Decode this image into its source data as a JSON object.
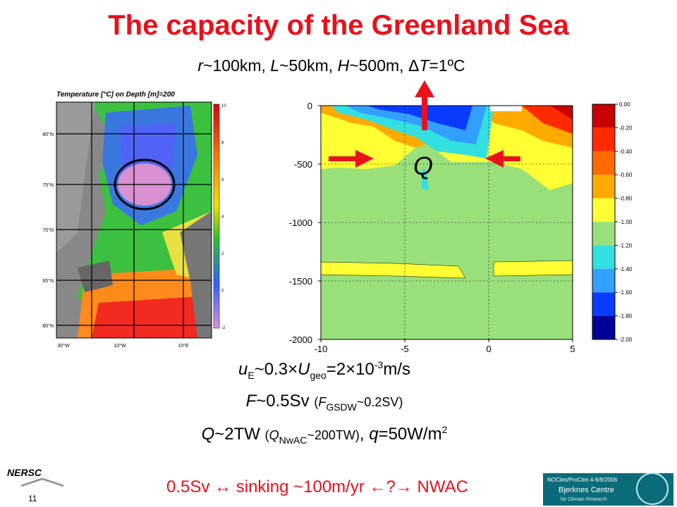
{
  "title": "The capacity of the Greenland Sea",
  "parameters": [
    {
      "text": "r",
      "style": "i"
    },
    {
      "text": "~100km, "
    },
    {
      "text": "L",
      "style": "i"
    },
    {
      "text": "~50km, "
    },
    {
      "text": "H",
      "style": "i"
    },
    {
      "text": "~500m, Δ"
    },
    {
      "text": "T",
      "style": "i"
    },
    {
      "text": "=1ºC"
    }
  ],
  "map": {
    "title": "Temperature [°C] on Depth [m]=200",
    "lat_labels": [
      "80°N",
      "75°N",
      "70°N",
      "65°N",
      "60°N"
    ],
    "lon_labels": [
      "30°W",
      "10°W",
      "10°E"
    ],
    "colorbar_labels": [
      "10",
      "8",
      "6",
      "4",
      "2",
      "0",
      "-2"
    ]
  },
  "section": {
    "q_label": "Q",
    "xlim": [
      -10,
      5
    ],
    "xticks": [
      -10,
      -5,
      0,
      5
    ],
    "ylim": [
      -2000,
      0
    ],
    "yticks": [
      0,
      -500,
      -1000,
      -1500,
      -2000
    ],
    "colorbar_labels": [
      "0.00",
      "-0.20",
      "-0.40",
      "-0.60",
      "-0.80",
      "-1.00",
      "-1.20",
      "-1.40",
      "-1.60",
      "-1.80",
      "-2.00"
    ],
    "colorbar_colors": [
      "#c80000",
      "#ff2a00",
      "#ff6a00",
      "#ffaa00",
      "#ffff33",
      "#99e07a",
      "#33e0e0",
      "#33a0ff",
      "#0a3cff",
      "#000096"
    ]
  },
  "equations": [
    [
      {
        "text": "u",
        "style": "i"
      },
      {
        "text": "E",
        "style": "sub"
      },
      {
        "text": "~0.3×"
      },
      {
        "text": "U",
        "style": "i"
      },
      {
        "text": "geo",
        "style": "sub"
      },
      {
        "text": "=2×10"
      },
      {
        "text": "-3",
        "style": "sup"
      },
      {
        "text": "m/s"
      }
    ],
    [
      {
        "text": "F",
        "style": "i"
      },
      {
        "text": "~0.5Sv "
      },
      {
        "text": "(",
        "style": "s"
      },
      {
        "text": "F",
        "style": "si"
      },
      {
        "text": "GSDW",
        "style": "sub"
      },
      {
        "text": "~0.2SV)",
        "style": "s"
      }
    ],
    [
      {
        "text": "Q",
        "style": "i"
      },
      {
        "text": "~2TW "
      },
      {
        "text": "(",
        "style": "s"
      },
      {
        "text": "Q",
        "style": "si"
      },
      {
        "text": "NwAC",
        "style": "sub"
      },
      {
        "text": "~200TW)",
        "style": "s"
      },
      {
        "text": ", "
      },
      {
        "text": "q",
        "style": "i"
      },
      {
        "text": "=50W/m"
      },
      {
        "text": "2",
        "style": "sup"
      }
    ]
  ],
  "conclusion": "0.5Sv ↔ sinking ~100m/yr ←?→ NWAC",
  "logo_left": "NERSC",
  "slide_number": "11",
  "badge": "NOClim/ProClim 4-6/9/2006",
  "logo_right": {
    "name": "Bjerknes Centre",
    "subtitle": "for Climate Research"
  }
}
